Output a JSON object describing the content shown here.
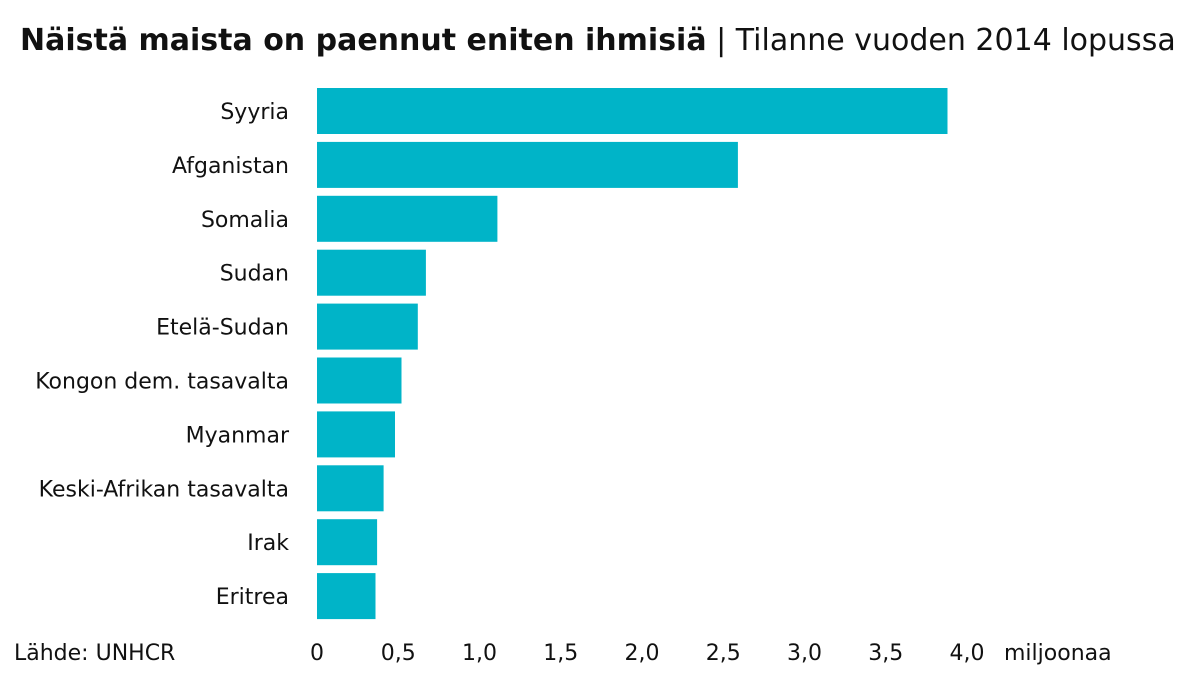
{
  "chart_data": {
    "type": "bar",
    "orientation": "horizontal",
    "title": "Näistä maista on paennut eniten ihmisiä",
    "subtitle": "Tilanne vuoden 2014 lopussa",
    "categories": [
      "Syyria",
      "Afganistan",
      "Somalia",
      "Sudan",
      "Etelä-Sudan",
      "Kongon dem. tasavalta",
      "Myanmar",
      "Keski-Afrikan tasavalta",
      "Irak",
      "Eritrea"
    ],
    "values": [
      3.88,
      2.59,
      1.11,
      0.67,
      0.62,
      0.52,
      0.48,
      0.41,
      0.37,
      0.36
    ],
    "xlim": [
      0,
      4.0
    ],
    "x_ticks": [
      "0",
      "0,5",
      "1,0",
      "1,5",
      "2,0",
      "2,5",
      "3,0",
      "3,5",
      "4,0"
    ],
    "x_tick_values": [
      0,
      0.5,
      1.0,
      1.5,
      2.0,
      2.5,
      3.0,
      3.5,
      4.0
    ],
    "unit": "miljoonaa",
    "source": "Lähde: UNHCR",
    "bar_color": "#00b4c8",
    "grid": false,
    "legend": "none"
  }
}
